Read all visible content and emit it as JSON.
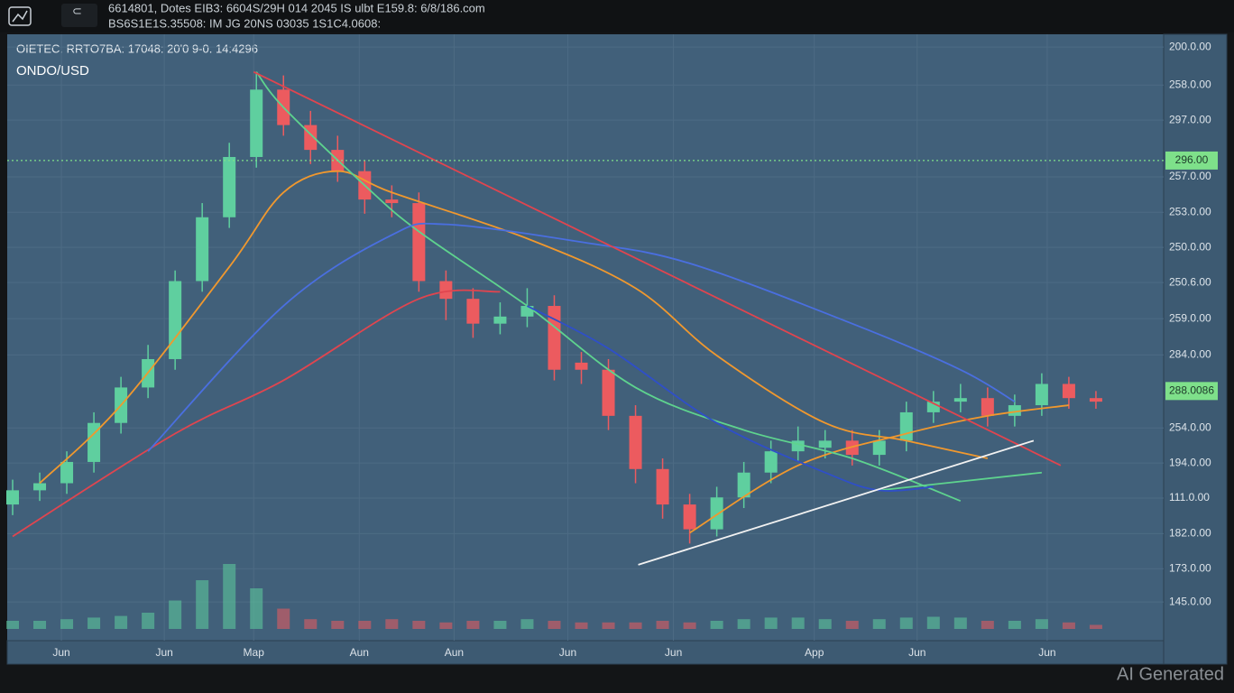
{
  "header": {
    "line1": "6614801, Dotes EIB3: 6604S/29H 014 2045 IS ulbt E159.8: 6/8/186.com",
    "line2": "BS6S1E1S.35508: IM JG 20NS 03035 1S1C4.0608:"
  },
  "watermark": "AI Generated",
  "chart_data": {
    "type": "candlestick",
    "title": "ONDO/USD",
    "subtitle": "OIETEC. RRTO7BA: 17048: 20'0 9-0. 14:4296",
    "grid": true,
    "up_color": "#5fcf9f",
    "down_color": "#ec5b5f",
    "xlim": [
      -0.2,
      42.5
    ],
    "ylim": [
      102.6,
      273.6
    ],
    "xticks": [
      {
        "value": 1.8,
        "label": "Jun"
      },
      {
        "value": 5.6,
        "label": "Jun"
      },
      {
        "value": 8.9,
        "label": "Map"
      },
      {
        "value": 12.8,
        "label": "Aun"
      },
      {
        "value": 16.3,
        "label": "Aun"
      },
      {
        "value": 20.5,
        "label": "Jun"
      },
      {
        "value": 24.4,
        "label": "Jun"
      },
      {
        "value": 29.6,
        "label": "App"
      },
      {
        "value": 33.4,
        "label": "Jun"
      },
      {
        "value": 38.2,
        "label": "Jun"
      }
    ],
    "yticks": [
      {
        "value": 270,
        "label": "200.0.00"
      },
      {
        "value": 259.3,
        "label": "258.0.00"
      },
      {
        "value": 249.4,
        "label": "297.0.00"
      },
      {
        "value": 233.4,
        "label": "257.0.00"
      },
      {
        "value": 223.4,
        "label": "253.0.00"
      },
      {
        "value": 213.5,
        "label": "250.0.00"
      },
      {
        "value": 203.6,
        "label": "250.6.00"
      },
      {
        "value": 193.4,
        "label": "259.0.00"
      },
      {
        "value": 183.2,
        "label": "284.0.00"
      },
      {
        "value": 162.6,
        "label": "254.0.00"
      },
      {
        "value": 152.7,
        "label": "194.0.00"
      },
      {
        "value": 142.8,
        "label": "111.0.00"
      },
      {
        "value": 132.8,
        "label": "182.0.00"
      },
      {
        "value": 122.9,
        "label": "173.0.00"
      },
      {
        "value": 113.5,
        "label": "145.0.00"
      }
    ],
    "price_labels": [
      {
        "value": 238,
        "label": "296.00",
        "color": "#7ee08a"
      },
      {
        "value": 173,
        "label": "288.0086",
        "color": "#7ee08a"
      }
    ],
    "x": [
      0,
      1,
      2,
      3,
      4,
      5,
      6,
      7,
      8,
      9,
      10,
      11,
      12,
      13,
      14,
      15,
      16,
      17,
      18,
      19,
      20,
      21,
      22,
      23,
      24,
      25,
      26,
      27,
      28,
      29,
      30,
      31,
      32,
      33,
      34,
      35,
      36,
      37,
      38,
      39,
      40
    ],
    "open": [
      141,
      145,
      147,
      153,
      164,
      174,
      182,
      204,
      222,
      239,
      258,
      248,
      241,
      235,
      227,
      226,
      204,
      199,
      192,
      194,
      197,
      181,
      179,
      166,
      151,
      141,
      134,
      143,
      150,
      156,
      157,
      159,
      155,
      159,
      167,
      170,
      171,
      166,
      169,
      175,
      171
    ],
    "high": [
      148,
      150,
      156,
      167,
      177,
      186,
      207,
      226,
      243,
      263,
      262,
      252,
      245,
      238,
      231,
      229,
      207,
      202,
      198,
      202,
      200,
      184,
      182,
      169,
      154,
      144,
      146,
      153,
      159,
      163,
      162,
      162,
      162,
      170,
      173,
      175,
      174,
      172,
      178,
      177,
      173
    ],
    "low": [
      138,
      142,
      144,
      150,
      161,
      171,
      179,
      201,
      219,
      236,
      245,
      237,
      232,
      223,
      222,
      201,
      193,
      188,
      189,
      191,
      176,
      175,
      162,
      147,
      137,
      130,
      132,
      140,
      147,
      153,
      154,
      152,
      152,
      156,
      164,
      167,
      163,
      163,
      166,
      168,
      168
    ],
    "close": [
      145,
      147,
      153,
      164,
      174,
      182,
      204,
      222,
      239,
      258,
      248,
      241,
      235,
      227,
      226,
      204,
      199,
      192,
      194,
      197,
      179,
      179,
      166,
      151,
      141,
      134,
      143,
      150,
      156,
      159,
      159,
      155,
      159,
      167,
      170,
      171,
      166,
      169,
      175,
      171,
      170
    ],
    "volume": [
      10,
      10,
      12,
      14,
      16,
      20,
      35,
      60,
      80,
      50,
      25,
      12,
      10,
      10,
      12,
      10,
      8,
      10,
      10,
      12,
      10,
      8,
      8,
      8,
      10,
      8,
      10,
      12,
      14,
      14,
      12,
      10,
      12,
      14,
      15,
      14,
      10,
      10,
      12,
      8,
      5
    ],
    "volume_lim": [
      0,
      100
    ],
    "overlays": [
      {
        "color": "#e0454f",
        "x": [
          0,
          6,
          10,
          15,
          18
        ],
        "values": [
          132,
          161,
          176,
          199,
          201
        ]
      },
      {
        "color": "#f0982e",
        "x": [
          1,
          4,
          8,
          10,
          12,
          14,
          19,
          23,
          26,
          30,
          33,
          36
        ],
        "values": [
          147,
          169,
          208,
          229,
          235,
          229,
          216,
          202,
          183,
          164,
          159,
          154
        ]
      },
      {
        "color": "#f0982e",
        "x": [
          25,
          29,
          33,
          36,
          39
        ],
        "values": [
          133,
          152,
          161,
          166,
          169
        ]
      },
      {
        "color": "#5ed38e",
        "x": [
          9,
          10,
          13,
          15,
          19,
          23,
          27,
          31,
          35
        ],
        "values": [
          263,
          253,
          231,
          218,
          197,
          174,
          162,
          154,
          142
        ]
      },
      {
        "color": "#5ed38e",
        "x": [
          32,
          38
        ],
        "values": [
          145,
          150
        ]
      },
      {
        "color": "#4a6fe0",
        "x": [
          5,
          10,
          14,
          16,
          21,
          25,
          31,
          35,
          37
        ],
        "values": [
          156,
          197,
          217,
          220,
          215,
          209,
          192,
          179,
          170
        ]
      },
      {
        "color": "#2f4fc8",
        "x": [
          19,
          22,
          26,
          30,
          32,
          34
        ],
        "values": [
          197,
          185,
          164,
          150,
          145,
          146
        ]
      },
      {
        "color": "#e0454f",
        "x": [
          8.9,
          38.7
        ],
        "values": [
          263,
          152
        ]
      },
      {
        "color": "#f2f2f2",
        "x": [
          23.1,
          37.7
        ],
        "values": [
          124,
          159
        ]
      }
    ]
  }
}
